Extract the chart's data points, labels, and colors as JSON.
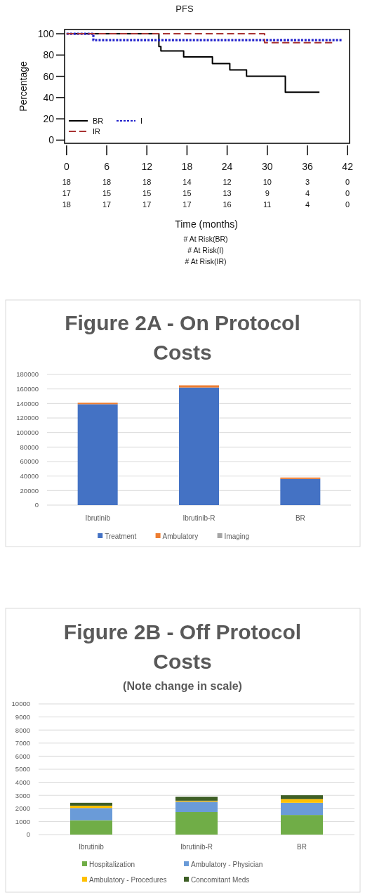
{
  "chart_data": [
    {
      "type": "step",
      "title": "PFS",
      "xlabel": "Time (months)",
      "ylabel": "Percentage",
      "xlim": [
        -0.3,
        42.3
      ],
      "ylim": [
        -3,
        104
      ],
      "xticks": [
        0,
        6,
        12,
        18,
        24,
        30,
        36,
        42
      ],
      "yticks": [
        0,
        20,
        40,
        60,
        80,
        100
      ],
      "legend": "bottom left",
      "series": [
        {
          "name": "BR",
          "color": "#000000",
          "line_style": "solid",
          "x": [
            0,
            13.8,
            14.1,
            17.5,
            21.8,
            24.4,
            26.9,
            32.7,
            37.8
          ],
          "values": [
            100,
            88,
            83.8,
            78.3,
            72,
            66,
            60,
            45,
            45
          ]
        },
        {
          "name": "I",
          "color": "#2222cc",
          "line_style": "dotted",
          "x": [
            0,
            4,
            41.1
          ],
          "values": [
            100,
            94,
            94
          ]
        },
        {
          "name": "IR",
          "color": "#a83232",
          "line_style": "dashed",
          "x": [
            0,
            29.6,
            39.7
          ],
          "values": [
            100,
            91.6,
            91.6
          ]
        }
      ],
      "annotations": [
        "18",
        "18",
        "18",
        "14",
        "12",
        "10",
        "3",
        "0",
        "17",
        "15",
        "15",
        "15",
        "13",
        "9",
        "4",
        "0",
        "18",
        "17",
        "17",
        "17",
        "16",
        "11",
        "4",
        "0",
        "# At Risk(BR)",
        "# At Risk(I)",
        "# At Risk(IR)"
      ]
    },
    {
      "type": "bar",
      "stacked": true,
      "title": "Figure 2A - On Protocol Costs",
      "categories": [
        "Ibrutinib",
        "Ibrutinib-R",
        "BR"
      ],
      "ylim": [
        0,
        180000
      ],
      "yticks": [
        0,
        20000,
        40000,
        60000,
        80000,
        100000,
        120000,
        140000,
        160000,
        180000
      ],
      "grid": "y",
      "legend": "bottom",
      "series": [
        {
          "name": "Treatment",
          "color": "#4472c4",
          "values": [
            139000,
            162000,
            36000
          ]
        },
        {
          "name": "Ambulatory",
          "color": "#ed7d31",
          "values": [
            2000,
            3000,
            2000
          ]
        },
        {
          "name": "Imaging",
          "color": "#a5a5a5",
          "values": [
            null,
            null,
            null
          ]
        }
      ]
    },
    {
      "type": "bar",
      "stacked": true,
      "title": "Figure 2B - Off Protocol Costs",
      "subtitle": "(Note change in scale)",
      "categories": [
        "Ibrutinib",
        "Ibrutinib-R",
        "BR"
      ],
      "ylim": [
        0,
        10000
      ],
      "yticks": [
        0,
        1000,
        2000,
        3000,
        4000,
        5000,
        6000,
        7000,
        8000,
        9000,
        10000
      ],
      "grid": "y",
      "legend": "bottom",
      "series": [
        {
          "name": "Hospitalization",
          "color": "#70ad47",
          "values": [
            1100,
            1720,
            1500
          ]
        },
        {
          "name": "Ambulatory - Physician",
          "color": "#6a9bd8",
          "values": [
            930,
            800,
            930
          ]
        },
        {
          "name": "Ambulatory - Procedures",
          "color": "#ffc000",
          "values": [
            180,
            70,
            290
          ]
        },
        {
          "name": "Concomitant Meds",
          "color": "#3e5f26",
          "values": [
            220,
            310,
            290
          ]
        }
      ]
    }
  ]
}
